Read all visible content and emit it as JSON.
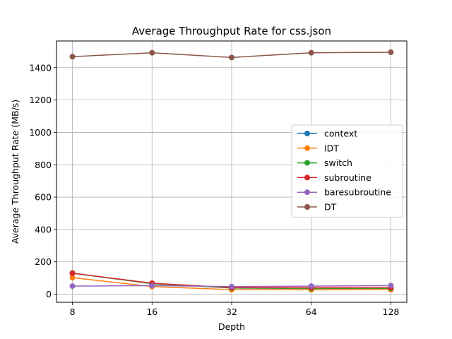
{
  "chart_data": {
    "type": "line",
    "title": "Average Throughput Rate for css.json",
    "xlabel": "Depth",
    "ylabel": "Average Throughput Rate (MB/s)",
    "x": [
      8,
      16,
      32,
      64,
      128
    ],
    "x_scale": "log2",
    "ylim": [
      -50,
      1565
    ],
    "yticks": [
      0,
      200,
      400,
      600,
      800,
      1000,
      1200,
      1400
    ],
    "grid": true,
    "legend_position": "center-right",
    "series": [
      {
        "name": "context",
        "color": "#1f77b4",
        "values": [
          130,
          65,
          40,
          38,
          38
        ]
      },
      {
        "name": "IDT",
        "color": "#ff7f0e",
        "values": [
          102,
          47,
          28,
          27,
          28
        ]
      },
      {
        "name": "switch",
        "color": "#2ca02c",
        "values": [
          130,
          65,
          38,
          35,
          36
        ]
      },
      {
        "name": "subroutine",
        "color": "#d62728",
        "values": [
          130,
          68,
          40,
          40,
          40
        ]
      },
      {
        "name": "baresubroutine",
        "color": "#9467bd",
        "values": [
          50,
          53,
          47,
          50,
          53
        ]
      },
      {
        "name": "DT",
        "color": "#8c564b",
        "values": [
          1468,
          1492,
          1463,
          1492,
          1495
        ]
      }
    ]
  }
}
